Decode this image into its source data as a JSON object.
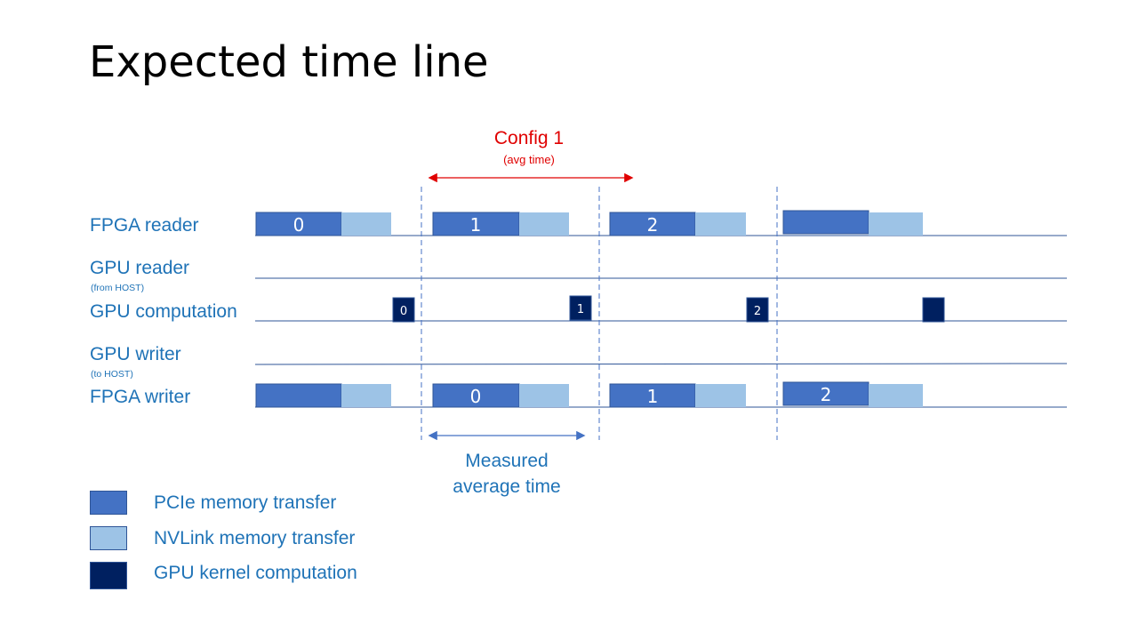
{
  "title": "Expected time line",
  "config": {
    "label": "Config 1",
    "sublabel": "(avg time)"
  },
  "measured": {
    "line1": "Measured",
    "line2": "average time"
  },
  "rows": {
    "fpga_reader": {
      "label": "FPGA reader"
    },
    "gpu_reader": {
      "label": "GPU reader",
      "sublabel": "(from HOST)"
    },
    "gpu_computation": {
      "label": "GPU computation"
    },
    "gpu_writer": {
      "label": "GPU writer",
      "sublabel": "(to HOST)"
    },
    "fpga_writer": {
      "label": "FPGA writer"
    }
  },
  "blocks": {
    "fpga_reader": [
      "0",
      "1",
      "2",
      ""
    ],
    "gpu_computation": [
      "0",
      "1",
      "2",
      ""
    ],
    "fpga_writer": [
      "",
      "0",
      "1",
      "2"
    ]
  },
  "legend": [
    {
      "label": "PCIe memory transfer",
      "color": "#4472c4"
    },
    {
      "label": "NVLink memory transfer",
      "color": "#9dc3e6"
    },
    {
      "label": "GPU kernel computation",
      "color": "#002060"
    }
  ],
  "colors": {
    "pcie": "#4472c4",
    "nvlink": "#9dc3e6",
    "kernel": "#002060",
    "row_line": "#2f5597",
    "accent_red": "#e00000",
    "label_blue": "#1f73b7"
  }
}
